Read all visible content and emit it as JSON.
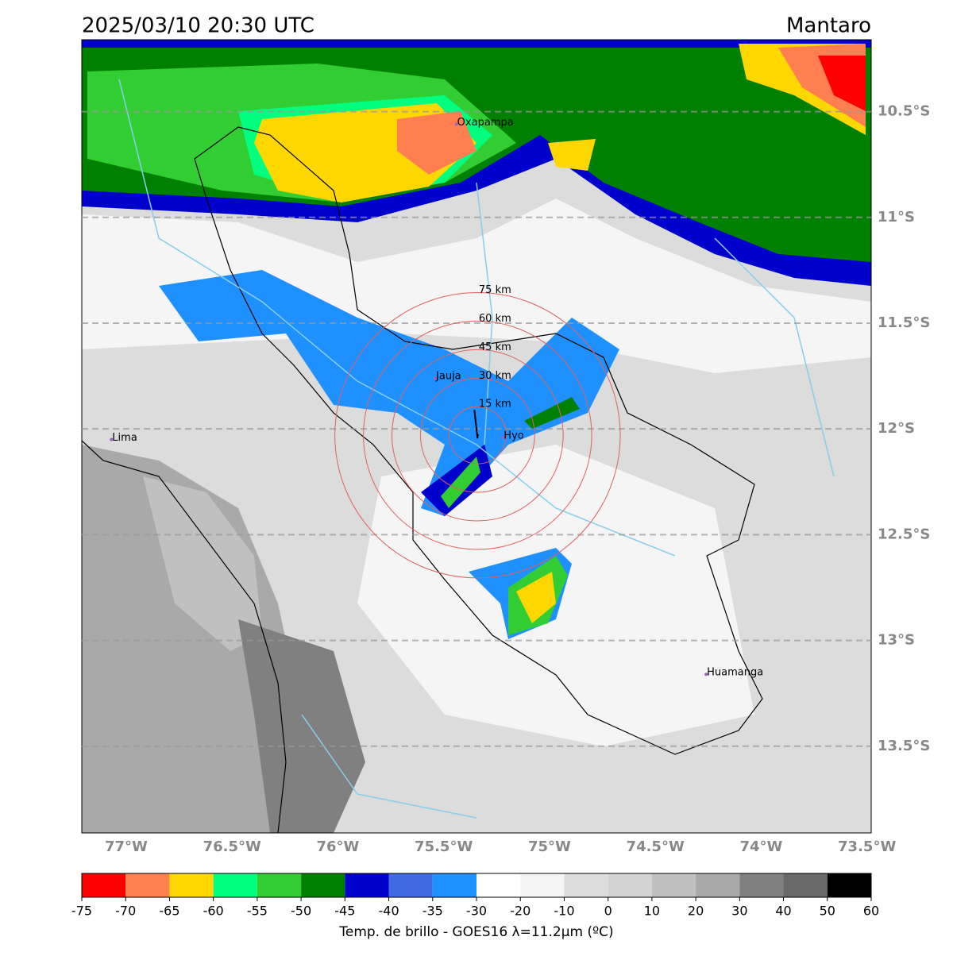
{
  "header": {
    "title": "2025/03/10 20:30 UTC",
    "region": "Mantaro"
  },
  "map": {
    "lonlim": [
      -77.21,
      -73.48
    ],
    "latlim": [
      -13.91,
      -10.16
    ],
    "lat_ticks": [
      {
        "value": -10.5,
        "label": "10.5°S"
      },
      {
        "value": -11,
        "label": "11°S"
      },
      {
        "value": -11.5,
        "label": "11.5°S"
      },
      {
        "value": -12,
        "label": "12°S"
      },
      {
        "value": -12.5,
        "label": "12.5°S"
      },
      {
        "value": -13,
        "label": "13°S"
      },
      {
        "value": -13.5,
        "label": "13.5°S"
      }
    ],
    "lon_ticks": [
      {
        "value": -77,
        "label": "77°W"
      },
      {
        "value": -76.5,
        "label": "76.5°W"
      },
      {
        "value": -76,
        "label": "76°W"
      },
      {
        "value": -75.5,
        "label": "75.5°W"
      },
      {
        "value": -75,
        "label": "75°W"
      },
      {
        "value": -74.5,
        "label": "74.5°W"
      },
      {
        "value": -74,
        "label": "74°W"
      },
      {
        "value": -73.5,
        "label": "73.5°W"
      }
    ],
    "places": [
      {
        "label": "Oxapampa",
        "lon": -75.44,
        "lat": -10.56
      },
      {
        "label": "Jauja",
        "lon": -75.54,
        "lat": -11.76
      },
      {
        "label": "Hyo",
        "lon": -75.22,
        "lat": -12.04
      },
      {
        "label": "Lima",
        "lon": -77.07,
        "lat": -12.05
      },
      {
        "label": "Huamanga",
        "lon": -74.26,
        "lat": -13.16
      }
    ],
    "radar": {
      "lon": -75.34,
      "lat": -12.03,
      "rings": [
        {
          "value": 15,
          "label": "15 km"
        },
        {
          "value": 30,
          "label": "30 km"
        },
        {
          "value": 45,
          "label": "45 km"
        },
        {
          "value": 60,
          "label": "60 km"
        },
        {
          "value": 75,
          "label": "75 km"
        }
      ],
      "ring_color": "#e06060"
    }
  },
  "colorbar": {
    "ticks": [
      -75,
      -70,
      -65,
      -60,
      -55,
      -50,
      -45,
      -40,
      -35,
      -30,
      -20,
      -10,
      0,
      10,
      20,
      30,
      40,
      50,
      60
    ],
    "colors": [
      "#ff0000",
      "#ff7f50",
      "#ffd700",
      "#00ff7f",
      "#32cd32",
      "#008000",
      "#0000cd",
      "#4169e1",
      "#1e90ff",
      "#ffffff",
      "#f5f5f5",
      "#dcdcdc",
      "#d3d3d3",
      "#c0c0c0",
      "#a9a9a9",
      "#808080",
      "#696969",
      "#000000"
    ],
    "label": "Temp. de brillo - GOES16 λ=11.2μm (ºC)"
  }
}
